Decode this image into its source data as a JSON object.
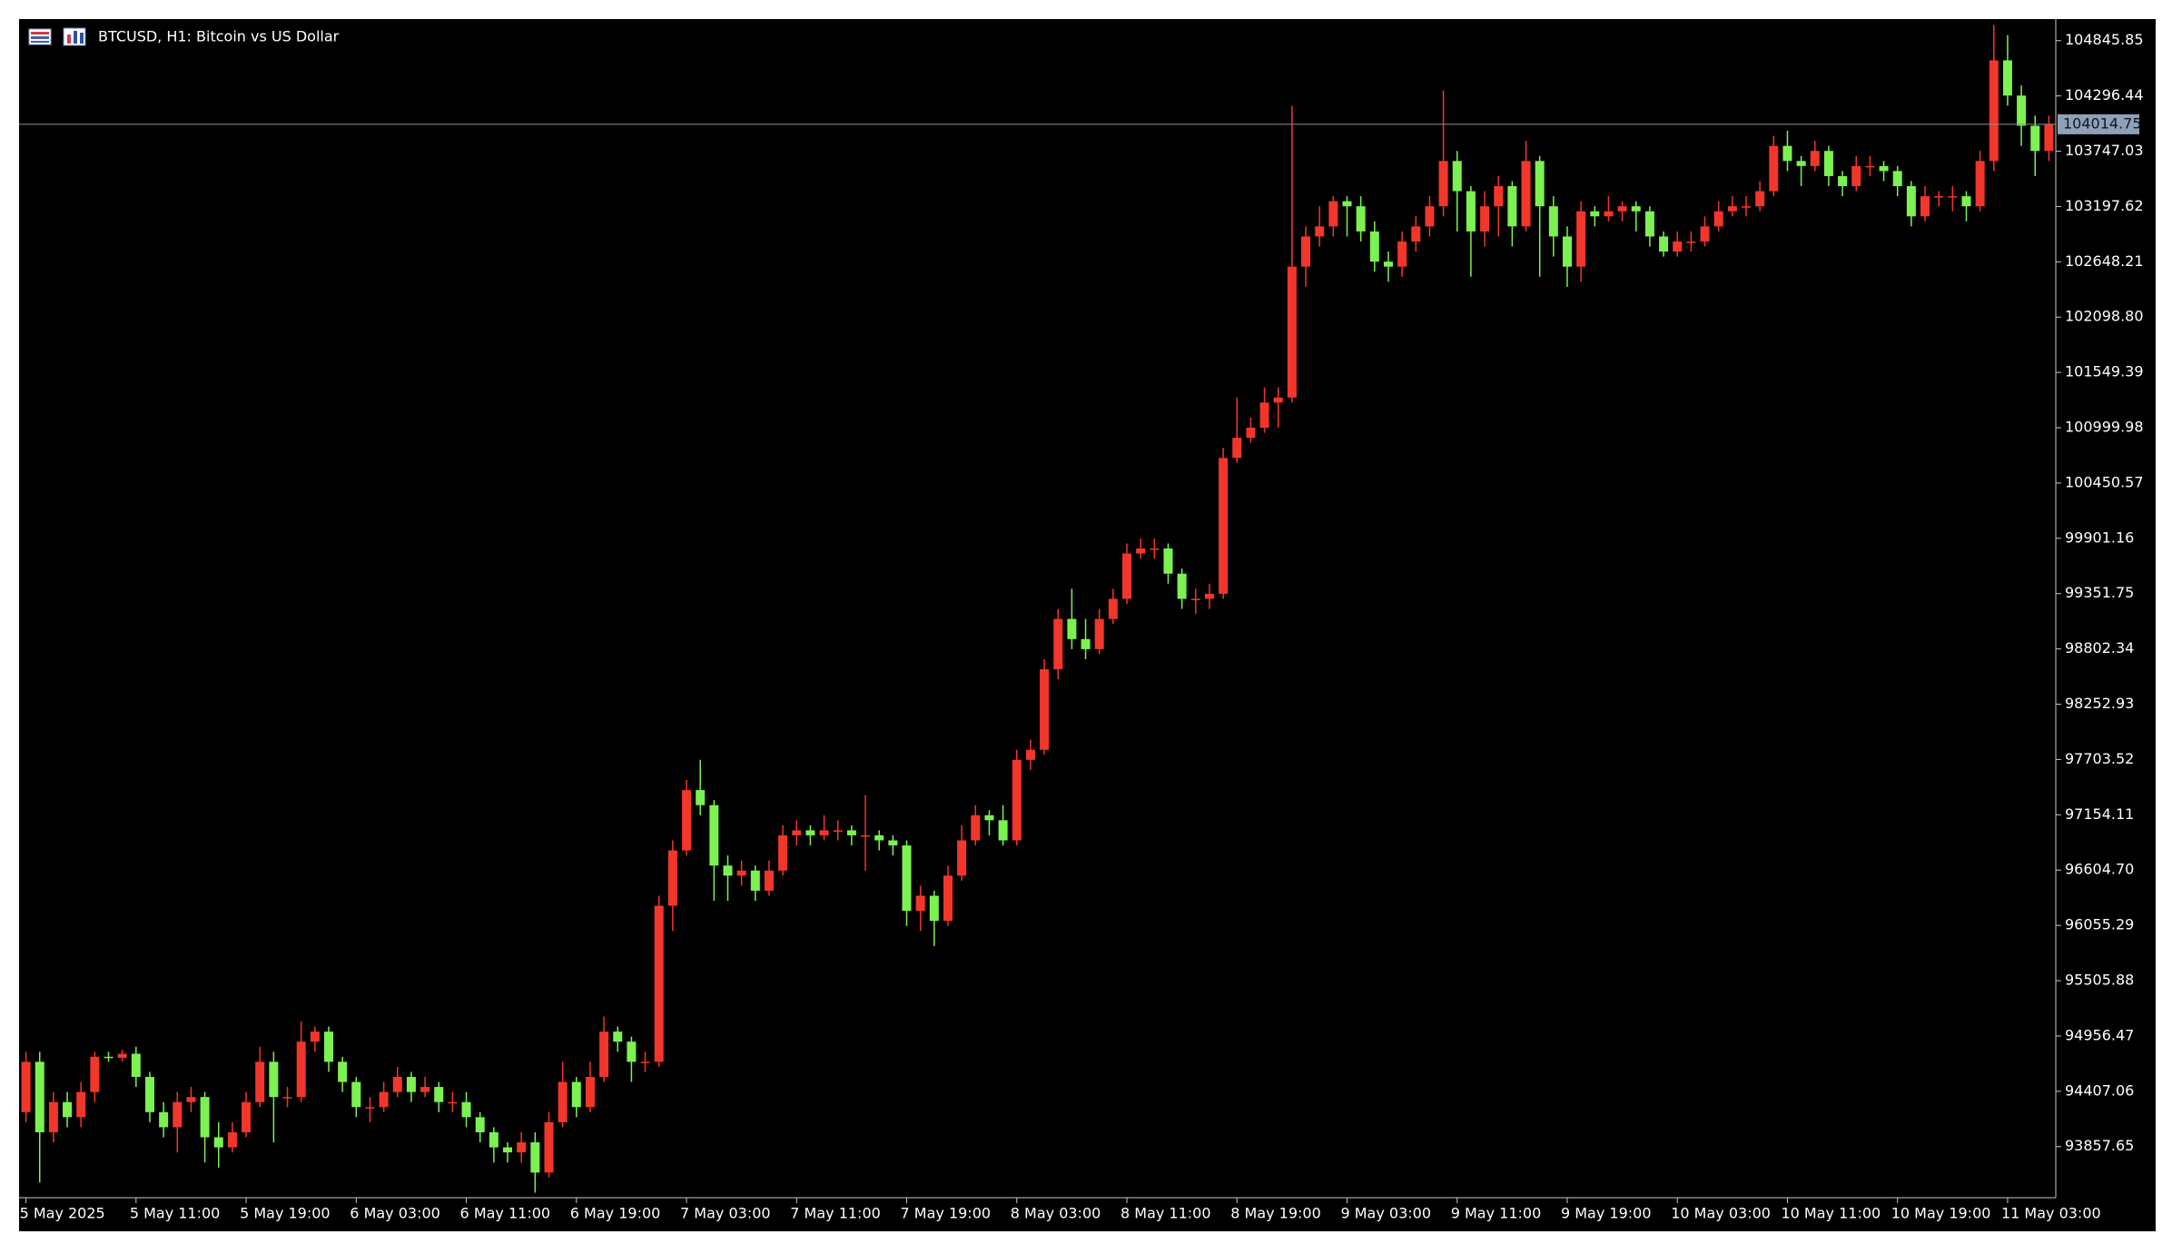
{
  "chart_data": {
    "type": "candlestick",
    "title": "BTCUSD, H1:  Bitcoin vs US Dollar",
    "up_color": "#f2362b",
    "down_color": "#7cf152",
    "background": "#000000",
    "current_price": 104014.75,
    "ylim": [
      93350,
      105060
    ],
    "yticks": [
      104845.85,
      104296.44,
      103747.03,
      103197.62,
      102648.21,
      {
        "value": 102098.8,
        "label": "102098.80"
      },
      101549.39,
      100999.98,
      100450.57,
      99901.16,
      99351.75,
      98802.34,
      98252.93,
      97703.52,
      97154.11,
      {
        "value": 96604.7,
        "label": "96604.70"
      },
      96055.29,
      95505.88,
      94956.47,
      94407.06,
      93857.65
    ],
    "categories": [
      "5 May 2025",
      null,
      null,
      null,
      null,
      null,
      null,
      null,
      "5 May 11:00",
      null,
      null,
      null,
      null,
      null,
      null,
      null,
      "5 May 19:00",
      null,
      null,
      null,
      null,
      null,
      null,
      null,
      "6 May 03:00",
      null,
      null,
      null,
      null,
      null,
      null,
      null,
      "6 May 11:00",
      null,
      null,
      null,
      null,
      null,
      null,
      null,
      "6 May 19:00",
      null,
      null,
      null,
      null,
      null,
      null,
      null,
      "7 May 03:00",
      null,
      null,
      null,
      null,
      null,
      null,
      null,
      "7 May 11:00",
      null,
      null,
      null,
      null,
      null,
      null,
      null,
      "7 May 19:00",
      null,
      null,
      null,
      null,
      null,
      null,
      null,
      "8 May 03:00",
      null,
      null,
      null,
      null,
      null,
      null,
      null,
      "8 May 11:00",
      null,
      null,
      null,
      null,
      null,
      null,
      null,
      "8 May 19:00",
      null,
      null,
      null,
      null,
      null,
      null,
      null,
      "9 May 03:00",
      null,
      null,
      null,
      null,
      null,
      null,
      null,
      "9 May 11:00",
      null,
      null,
      null,
      null,
      null,
      null,
      null,
      "9 May 19:00",
      null,
      null,
      null,
      null,
      null,
      null,
      null,
      "10 May 03:00",
      null,
      null,
      null,
      null,
      null,
      null,
      null,
      "10 May 11:00",
      null,
      null,
      null,
      null,
      null,
      null,
      null,
      "10 May 19:00",
      null,
      null,
      null,
      null,
      null,
      null,
      null,
      "11 May 03:00",
      null,
      null,
      null
    ],
    "open": [
      94200,
      94700,
      94000,
      94300,
      94150,
      94400,
      94750,
      94740,
      94780,
      94550,
      94200,
      94050,
      94300,
      94350,
      93950,
      93850,
      94000,
      94300,
      94700,
      94350,
      94350,
      94900,
      95000,
      94700,
      94500,
      94250,
      94250,
      94400,
      94550,
      94400,
      94450,
      94300,
      94300,
      94150,
      94000,
      93850,
      93800,
      93900,
      93600,
      94100,
      94500,
      94250,
      94550,
      95000,
      94900,
      94700,
      94700,
      96250,
      96800,
      97400,
      97250,
      96650,
      96550,
      96600,
      96400,
      96600,
      96950,
      97000,
      96950,
      97000,
      97000,
      96950,
      96950,
      96900,
      96850,
      96200,
      96350,
      96100,
      96550,
      96900,
      97150,
      97100,
      96900,
      97700,
      97800,
      98600,
      99100,
      98900,
      98800,
      99100,
      99300,
      99750,
      99800,
      99800,
      99550,
      99300,
      99300,
      99350,
      100700,
      100900,
      101000,
      101250,
      101300,
      102600,
      102900,
      103000,
      103250,
      103200,
      102950,
      102650,
      102600,
      102850,
      103000,
      103200,
      103650,
      103350,
      102950,
      103200,
      103400,
      103000,
      103650,
      103200,
      102900,
      102600,
      103150,
      103100,
      103150,
      103200,
      103150,
      102900,
      102750,
      102850,
      102850,
      103000,
      103150,
      103200,
      103200,
      103350,
      103800,
      103650,
      103600,
      103750,
      103500,
      103400,
      103600,
      103600,
      103550,
      103400,
      103100,
      103300,
      103300,
      103300,
      103200,
      103650,
      104650,
      104300,
      104000,
      103750
    ],
    "high": [
      94800,
      94800,
      94400,
      94400,
      94500,
      94800,
      94800,
      94820,
      94850,
      94600,
      94300,
      94400,
      94450,
      94400,
      94100,
      94100,
      94400,
      94850,
      94800,
      94450,
      95100,
      95050,
      95050,
      94750,
      94550,
      94350,
      94500,
      94650,
      94600,
      94550,
      94500,
      94400,
      94400,
      94200,
      94050,
      93900,
      94000,
      94000,
      94200,
      94700,
      94550,
      94700,
      95150,
      95050,
      94950,
      94800,
      96350,
      96900,
      97500,
      97700,
      97300,
      96750,
      96700,
      96650,
      96700,
      97050,
      97100,
      97050,
      97150,
      97100,
      97050,
      97350,
      97000,
      96950,
      96900,
      96450,
      96400,
      96650,
      97050,
      97250,
      97200,
      97250,
      97800,
      97900,
      98700,
      99200,
      99400,
      99100,
      99200,
      99400,
      99850,
      99900,
      99900,
      99850,
      99600,
      99400,
      99450,
      100800,
      101300,
      101100,
      101400,
      101400,
      104200,
      103000,
      103200,
      103300,
      103300,
      103300,
      103050,
      102750,
      102950,
      103100,
      103300,
      104350,
      103750,
      103400,
      103350,
      103500,
      103450,
      103850,
      103700,
      103300,
      103000,
      103250,
      103200,
      103300,
      103250,
      103250,
      103200,
      102950,
      102950,
      102950,
      103100,
      103250,
      103300,
      103300,
      103450,
      103900,
      103950,
      103700,
      103850,
      103800,
      103550,
      103700,
      103700,
      103650,
      103600,
      103450,
      103400,
      103350,
      103400,
      103350,
      103750,
      105000,
      104900,
      104400,
      104100,
      104100
    ],
    "low": [
      94100,
      93500,
      93900,
      94050,
      94050,
      94300,
      94700,
      94700,
      94450,
      94100,
      93950,
      93800,
      94200,
      93700,
      93650,
      93800,
      93950,
      94250,
      93900,
      94250,
      94300,
      94800,
      94600,
      94400,
      94150,
      94100,
      94200,
      94350,
      94300,
      94350,
      94200,
      94200,
      94050,
      93900,
      93700,
      93700,
      93700,
      93400,
      93550,
      94050,
      94150,
      94200,
      94500,
      94800,
      94500,
      94600,
      94650,
      96000,
      96750,
      97150,
      96300,
      96300,
      96450,
      96300,
      96350,
      96550,
      96850,
      96850,
      96900,
      96900,
      96850,
      96600,
      96800,
      96750,
      96050,
      96000,
      95850,
      96050,
      96500,
      96850,
      96950,
      96850,
      96850,
      97600,
      97750,
      98500,
      98800,
      98700,
      98750,
      99050,
      99250,
      99700,
      99700,
      99450,
      99200,
      99150,
      99200,
      99300,
      100650,
      100850,
      100950,
      101000,
      101250,
      102400,
      102800,
      102900,
      102900,
      102850,
      102550,
      102450,
      102500,
      102750,
      102900,
      103100,
      102950,
      102500,
      102800,
      102900,
      102800,
      102950,
      102500,
      102700,
      102400,
      102450,
      103000,
      103050,
      103050,
      102950,
      102800,
      102700,
      102700,
      102750,
      102800,
      102950,
      103100,
      103100,
      103150,
      103300,
      103550,
      103400,
      103550,
      103400,
      103300,
      103350,
      103500,
      103450,
      103300,
      103000,
      103050,
      103200,
      103150,
      103050,
      103150,
      103550,
      104200,
      103800,
      103500,
      103650
    ],
    "close": [
      94700,
      94000,
      94300,
      94150,
      94400,
      94750,
      94740,
      94780,
      94550,
      94200,
      94050,
      94300,
      94350,
      93950,
      93850,
      94000,
      94300,
      94700,
      94350,
      94350,
      94900,
      95000,
      94700,
      94500,
      94250,
      94250,
      94400,
      94550,
      94400,
      94450,
      94300,
      94300,
      94150,
      94000,
      93850,
      93800,
      93900,
      93600,
      94100,
      94500,
      94250,
      94550,
      95000,
      94900,
      94700,
      94700,
      96250,
      96800,
      97400,
      97250,
      96650,
      96550,
      96600,
      96400,
      96600,
      96950,
      97000,
      96950,
      97000,
      97000,
      96950,
      96950,
      96900,
      96850,
      96200,
      96350,
      96100,
      96550,
      96900,
      97150,
      97100,
      96900,
      97700,
      97800,
      98600,
      99100,
      98900,
      98800,
      99100,
      99300,
      99750,
      99800,
      99800,
      99550,
      99300,
      99300,
      99350,
      100700,
      100900,
      101000,
      101250,
      101300,
      102600,
      102900,
      103000,
      103250,
      103200,
      102950,
      102650,
      102600,
      102850,
      103000,
      103200,
      103650,
      103350,
      102950,
      103200,
      103400,
      103000,
      103650,
      103200,
      102900,
      102600,
      103150,
      103100,
      103150,
      103200,
      103150,
      102900,
      102750,
      102850,
      102850,
      103000,
      103150,
      103200,
      103200,
      103350,
      103800,
      103650,
      103600,
      103750,
      103500,
      103400,
      103600,
      103600,
      103550,
      103400,
      103100,
      103300,
      103300,
      103300,
      103200,
      103650,
      104650,
      104300,
      104000,
      103750,
      104014.75
    ]
  }
}
